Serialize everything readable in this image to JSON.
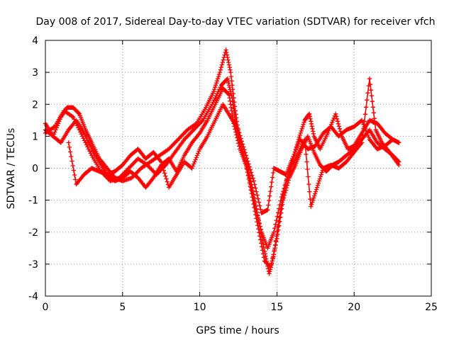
{
  "chart_data": {
    "type": "scatter",
    "title": "Day 008 of 2017, Sidereal Day-to-day VTEC variation (SDTVAR) for receiver vfch",
    "xlabel": "GPS time / hours",
    "ylabel": "SDTVAR / TECUs",
    "xlim": [
      0,
      25
    ],
    "ylim": [
      -4,
      4
    ],
    "x_ticks": [
      "0",
      "5",
      "10",
      "15",
      "20",
      "25"
    ],
    "y_ticks": [
      "-4",
      "-3",
      "-2",
      "-1",
      "0",
      "1",
      "2",
      "3",
      "4"
    ],
    "grid": true,
    "marker": "plus",
    "color": "#ff0000",
    "series": [
      {
        "points": [
          [
            0,
            1.4
          ],
          [
            0.5,
            1.0
          ],
          [
            1.0,
            1.6
          ],
          [
            1.4,
            1.9
          ],
          [
            1.8,
            1.9
          ],
          [
            2.2,
            1.7
          ],
          [
            2.6,
            1.2
          ],
          [
            3.0,
            0.8
          ],
          [
            3.5,
            0.3
          ],
          [
            4.0,
            0.0
          ],
          [
            4.5,
            -0.3
          ],
          [
            5.0,
            -0.4
          ],
          [
            5.6,
            -0.3
          ],
          [
            6.2,
            0.0
          ],
          [
            6.8,
            0.2
          ],
          [
            7.4,
            0.4
          ],
          [
            8.0,
            0.6
          ],
          [
            8.6,
            0.9
          ],
          [
            9.2,
            1.2
          ],
          [
            9.8,
            1.4
          ],
          [
            10.4,
            1.9
          ],
          [
            10.9,
            2.4
          ],
          [
            11.3,
            3.0
          ],
          [
            11.7,
            3.7
          ],
          [
            12.0,
            3.0
          ],
          [
            12.3,
            1.8
          ],
          [
            12.6,
            0.8
          ],
          [
            13.0,
            0.2
          ],
          [
            13.4,
            -0.6
          ],
          [
            13.8,
            -1.6
          ],
          [
            14.2,
            -2.6
          ],
          [
            14.5,
            -3.3
          ],
          [
            14.8,
            -2.7
          ],
          [
            15.2,
            -1.4
          ],
          [
            15.6,
            -0.4
          ],
          [
            16.0,
            0.2
          ],
          [
            16.4,
            0.9
          ],
          [
            16.8,
            1.5
          ],
          [
            17.1,
            1.7
          ],
          [
            17.4,
            1.0
          ],
          [
            17.8,
            0.6
          ],
          [
            18.3,
            1.1
          ],
          [
            18.8,
            1.7
          ],
          [
            19.2,
            1.0
          ],
          [
            19.6,
            0.6
          ],
          [
            20.0,
            0.7
          ],
          [
            20.5,
            1.1
          ],
          [
            21.0,
            1.5
          ],
          [
            21.5,
            1.4
          ],
          [
            22.0,
            1.1
          ],
          [
            22.5,
            0.9
          ],
          [
            22.9,
            0.8
          ]
        ]
      },
      {
        "points": [
          [
            0,
            1.1
          ],
          [
            0.6,
            1.3
          ],
          [
            1.2,
            1.8
          ],
          [
            1.8,
            1.6
          ],
          [
            2.4,
            1.0
          ],
          [
            3.0,
            0.4
          ],
          [
            3.6,
            -0.1
          ],
          [
            4.2,
            -0.4
          ],
          [
            4.8,
            -0.3
          ],
          [
            5.4,
            0.0
          ],
          [
            6.0,
            0.3
          ],
          [
            6.6,
            0.1
          ],
          [
            7.2,
            -0.2
          ],
          [
            7.8,
            0.1
          ],
          [
            8.4,
            0.5
          ],
          [
            9.0,
            0.9
          ],
          [
            9.6,
            1.2
          ],
          [
            10.2,
            1.5
          ],
          [
            10.8,
            2.0
          ],
          [
            11.4,
            2.6
          ],
          [
            11.8,
            2.8
          ],
          [
            12.1,
            2.2
          ],
          [
            12.4,
            1.2
          ],
          [
            12.8,
            0.5
          ],
          [
            13.2,
            -0.3
          ],
          [
            13.6,
            -1.2
          ],
          [
            14.0,
            -2.0
          ],
          [
            14.4,
            -2.5
          ],
          [
            14.8,
            -2.0
          ],
          [
            15.3,
            -0.9
          ],
          [
            15.8,
            -0.1
          ],
          [
            16.3,
            0.4
          ],
          [
            16.8,
            0.9
          ],
          [
            17.2,
            -1.2
          ],
          [
            17.6,
            -0.6
          ],
          [
            18.0,
            0.0
          ],
          [
            18.5,
            0.1
          ],
          [
            19.0,
            0.0
          ],
          [
            19.5,
            0.2
          ],
          [
            20.0,
            0.5
          ],
          [
            20.5,
            0.8
          ],
          [
            21.0,
            2.8
          ],
          [
            21.4,
            1.2
          ],
          [
            21.8,
            0.8
          ],
          [
            22.3,
            0.5
          ],
          [
            22.9,
            0.1
          ]
        ]
      },
      {
        "points": [
          [
            0,
            1.2
          ],
          [
            0.5,
            1.0
          ],
          [
            1.0,
            0.8
          ],
          [
            1.5,
            1.2
          ],
          [
            2.0,
            1.5
          ],
          [
            2.5,
            1.1
          ],
          [
            3.0,
            0.6
          ],
          [
            3.5,
            0.2
          ],
          [
            4.0,
            -0.2
          ],
          [
            4.5,
            -0.4
          ],
          [
            5.0,
            -0.3
          ],
          [
            5.5,
            -0.1
          ],
          [
            6.0,
            -0.3
          ],
          [
            6.5,
            -0.6
          ],
          [
            7.0,
            -0.3
          ],
          [
            7.5,
            0.1
          ],
          [
            8.0,
            0.3
          ],
          [
            8.5,
            -0.1
          ],
          [
            9.0,
            0.4
          ],
          [
            9.5,
            0.8
          ],
          [
            10.0,
            1.1
          ],
          [
            10.5,
            1.5
          ],
          [
            11.0,
            2.0
          ],
          [
            11.5,
            2.5
          ],
          [
            11.9,
            2.3
          ],
          [
            12.2,
            1.4
          ],
          [
            12.6,
            0.6
          ],
          [
            13.0,
            0.1
          ],
          [
            13.4,
            -0.9
          ],
          [
            13.8,
            -1.9
          ],
          [
            14.2,
            -2.9
          ],
          [
            14.6,
            -3.1
          ],
          [
            15.0,
            -2.2
          ],
          [
            15.4,
            -1.0
          ],
          [
            15.8,
            -0.3
          ],
          [
            16.2,
            0.1
          ],
          [
            16.6,
            0.6
          ],
          [
            17.0,
            1.0
          ],
          [
            17.4,
            0.5
          ],
          [
            17.8,
            0.1
          ],
          [
            18.2,
            -0.1
          ],
          [
            18.6,
            0.1
          ],
          [
            19.0,
            0.2
          ],
          [
            19.5,
            0.4
          ],
          [
            20.0,
            0.6
          ],
          [
            20.5,
            0.9
          ],
          [
            21.0,
            1.2
          ],
          [
            21.5,
            0.8
          ],
          [
            22.0,
            0.6
          ],
          [
            22.5,
            0.4
          ],
          [
            22.9,
            0.2
          ]
        ]
      },
      {
        "points": [
          [
            1.5,
            0.8
          ],
          [
            2.0,
            -0.5
          ],
          [
            2.5,
            -0.2
          ],
          [
            3.0,
            0.0
          ],
          [
            3.5,
            -0.1
          ],
          [
            4.0,
            -0.2
          ],
          [
            4.5,
            -0.1
          ],
          [
            5.0,
            0.1
          ],
          [
            5.5,
            0.4
          ],
          [
            6.0,
            0.6
          ],
          [
            6.5,
            0.3
          ],
          [
            7.0,
            0.5
          ],
          [
            7.5,
            0.2
          ],
          [
            8.0,
            -0.6
          ],
          [
            8.5,
            -0.2
          ],
          [
            9.0,
            0.2
          ],
          [
            9.5,
            0.0
          ],
          [
            10.0,
            0.6
          ],
          [
            10.5,
            1.0
          ],
          [
            11.0,
            1.5
          ],
          [
            11.5,
            2.0
          ],
          [
            12.0,
            1.6
          ],
          [
            12.5,
            1.2
          ],
          [
            13.0,
            0.4
          ],
          [
            13.5,
            -0.4
          ],
          [
            14.0,
            -1.4
          ],
          [
            14.4,
            -1.3
          ],
          [
            14.8,
            0.0
          ],
          [
            15.2,
            -0.1
          ],
          [
            15.6,
            -0.2
          ],
          [
            16.0,
            0.3
          ],
          [
            16.5,
            0.9
          ],
          [
            17.0,
            0.6
          ],
          [
            17.5,
            0.7
          ],
          [
            18.0,
            1.1
          ],
          [
            18.5,
            1.3
          ],
          [
            19.0,
            1.0
          ],
          [
            19.5,
            1.2
          ],
          [
            20.0,
            1.3
          ],
          [
            20.5,
            1.5
          ],
          [
            21.0,
            0.9
          ],
          [
            21.5,
            0.6
          ],
          [
            22.0,
            0.7
          ],
          [
            22.5,
            0.9
          ],
          [
            22.9,
            0.8
          ]
        ]
      }
    ]
  }
}
